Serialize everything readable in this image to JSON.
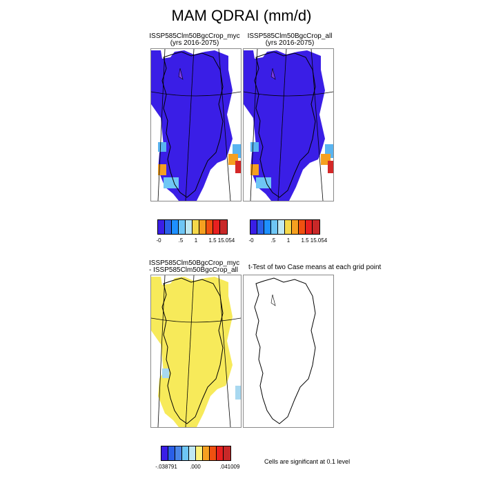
{
  "main_title": "MAM QDRAI (mm/d)",
  "panels": {
    "top_left": {
      "title_line1": "ISSP585Clm50BgcCrop_myc",
      "title_line2": "(yrs 2016-2075)"
    },
    "top_right": {
      "title_line1": "ISSP585Clm50BgcCrop_all",
      "title_line2": "(yrs 2016-2075)"
    },
    "bottom_left": {
      "title_line1": "ISSP585Clm50BgcCrop_myc",
      "title_line2": "- ISSP585Clm50BgcCrop_all"
    },
    "bottom_right": {
      "title": "t-Test of two Case means at each grid point"
    }
  },
  "colorbar_top": {
    "colors": [
      "#3a1ee6",
      "#2a5fe8",
      "#1e90ff",
      "#6ec6f5",
      "#bfe8f2",
      "#f5d84a",
      "#f5a020",
      "#f05010",
      "#e82020",
      "#c82828"
    ],
    "tick_labels": [
      "-0",
      ".5",
      "1",
      "1.5",
      "15.054"
    ]
  },
  "colorbar_bottom": {
    "colors": [
      "#3a1ee6",
      "#2a5fe8",
      "#4a86e8",
      "#6ec6f5",
      "#bfe8f2",
      "#fdf27a",
      "#f5a020",
      "#f05010",
      "#e82020",
      "#c82828"
    ],
    "tick_labels": [
      "-.038791",
      ".000",
      ".041009"
    ]
  },
  "significance_note": "Cells are significant at 0.1 level",
  "map_colors": {
    "top_fill": "#3a1ee6",
    "diff_fill": "#f7ea5a",
    "light_blue": "#5ab4f0",
    "orange": "#f5a020",
    "red": "#d42828",
    "pale_blue": "#a8d8f0"
  }
}
